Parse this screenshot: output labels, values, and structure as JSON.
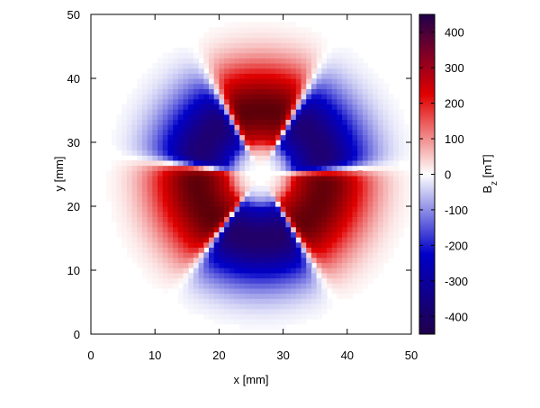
{
  "chart_data": {
    "type": "heatmap",
    "title": "",
    "xlabel": "x [mm]",
    "ylabel": "y [mm]",
    "xlim": [
      0,
      50
    ],
    "ylim": [
      0,
      50
    ],
    "xticks": [
      "0",
      "10",
      "20",
      "30",
      "40",
      "50"
    ],
    "yticks": [
      "0",
      "10",
      "20",
      "30",
      "40",
      "50"
    ],
    "colorbar": {
      "label_main": "B",
      "label_sub": "z",
      "label_unit": " [mT]",
      "range": [
        -450,
        450
      ],
      "ticks": [
        "400",
        "300",
        "200",
        "100",
        "0",
        "-100",
        "-200",
        "-300",
        "-400"
      ],
      "tick_values": [
        400,
        300,
        200,
        100,
        0,
        -100,
        -200,
        -300,
        -400
      ],
      "colormap": [
        "#20004a",
        "#0000c8",
        "#ffffff",
        "#e00000",
        "#4a0000"
      ]
    },
    "field": {
      "center": [
        26.5,
        25.0
      ],
      "sampling_step_mm": 0.8,
      "lobes": [
        {
          "sign": "positive",
          "x": 26.5,
          "y": 35.5,
          "peak_mT": 430
        },
        {
          "sign": "negative",
          "x": 35.5,
          "y": 31.0,
          "peak_mT": -400
        },
        {
          "sign": "positive",
          "x": 35.5,
          "y": 20.5,
          "peak_mT": 420
        },
        {
          "sign": "negative",
          "x": 26.0,
          "y": 15.5,
          "peak_mT": -420
        },
        {
          "sign": "positive",
          "x": 17.5,
          "y": 21.5,
          "peak_mT": 430
        },
        {
          "sign": "negative",
          "x": 18.0,
          "y": 31.0,
          "peak_mT": -400
        }
      ]
    }
  }
}
